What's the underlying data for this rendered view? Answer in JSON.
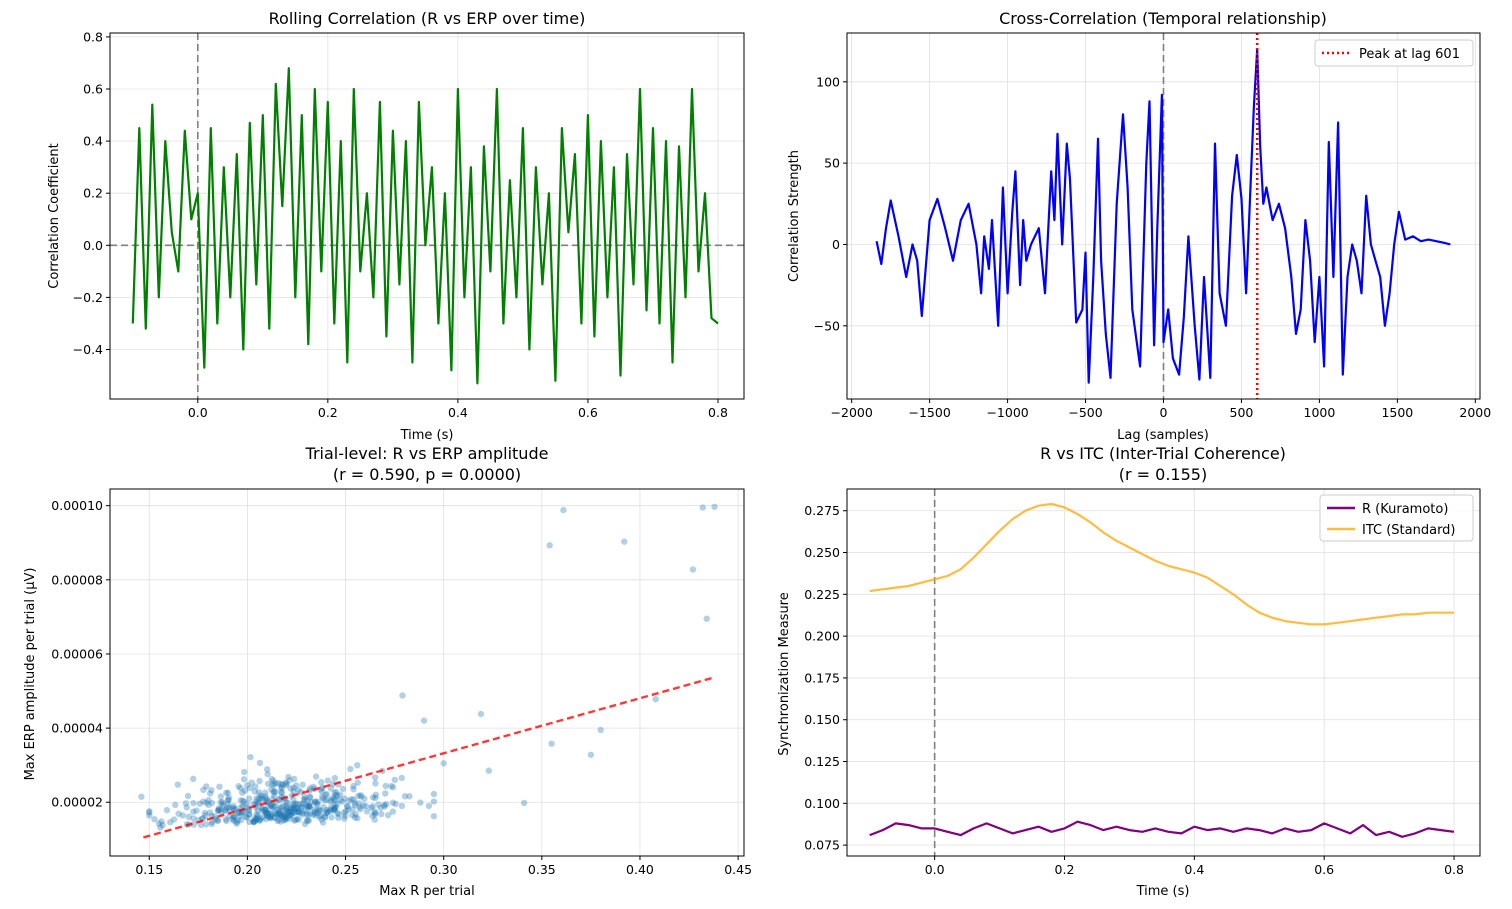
{
  "figure": {
    "background": "#ffffff"
  },
  "chart_data": [
    {
      "id": "rolling",
      "type": "line",
      "title": "Rolling Correlation (R vs ERP over time)",
      "xlabel": "Time (s)",
      "ylabel": "Correlation Coefficient",
      "xlim": [
        -0.135,
        0.84
      ],
      "ylim": [
        -0.59,
        0.815
      ],
      "xticks": [
        0.0,
        0.2,
        0.4,
        0.6,
        0.8
      ],
      "xtick_labels": [
        "0.0",
        "0.2",
        "0.4",
        "0.6",
        "0.8"
      ],
      "yticks": [
        -0.4,
        -0.2,
        0.0,
        0.2,
        0.4,
        0.6,
        0.8
      ],
      "ytick_labels": [
        "−0.4",
        "−0.2",
        "0.0",
        "0.2",
        "0.4",
        "0.6",
        "0.8"
      ],
      "grid": true,
      "vlines": [
        {
          "x": 0,
          "color": "#808080",
          "dash": "dashed"
        }
      ],
      "hlines": [
        {
          "y": 0,
          "color": "#808080",
          "dash": "dashed"
        }
      ],
      "series": [
        {
          "name": "Rolling correlation",
          "color": "#008000",
          "x": [
            -0.1,
            -0.09,
            -0.08,
            -0.07,
            -0.06,
            -0.05,
            -0.04,
            -0.03,
            -0.02,
            -0.01,
            0.0,
            0.01,
            0.02,
            0.03,
            0.04,
            0.05,
            0.06,
            0.07,
            0.08,
            0.09,
            0.1,
            0.11,
            0.12,
            0.13,
            0.14,
            0.15,
            0.16,
            0.17,
            0.18,
            0.19,
            0.2,
            0.21,
            0.22,
            0.23,
            0.24,
            0.25,
            0.26,
            0.27,
            0.28,
            0.29,
            0.3,
            0.31,
            0.32,
            0.33,
            0.34,
            0.35,
            0.36,
            0.37,
            0.38,
            0.39,
            0.4,
            0.41,
            0.42,
            0.43,
            0.44,
            0.45,
            0.46,
            0.47,
            0.48,
            0.49,
            0.5,
            0.51,
            0.52,
            0.53,
            0.54,
            0.55,
            0.56,
            0.57,
            0.58,
            0.59,
            0.6,
            0.61,
            0.62,
            0.63,
            0.64,
            0.65,
            0.66,
            0.67,
            0.68,
            0.69,
            0.7,
            0.71,
            0.72,
            0.73,
            0.74,
            0.75,
            0.76,
            0.77,
            0.78,
            0.79,
            0.8
          ],
          "y": [
            -0.3,
            0.45,
            -0.32,
            0.54,
            -0.2,
            0.4,
            0.05,
            -0.1,
            0.44,
            0.1,
            0.2,
            -0.47,
            0.45,
            -0.3,
            0.3,
            -0.2,
            0.35,
            -0.4,
            0.47,
            -0.15,
            0.5,
            -0.32,
            0.62,
            0.15,
            0.68,
            -0.2,
            0.5,
            -0.38,
            0.6,
            -0.1,
            0.55,
            -0.3,
            0.4,
            -0.45,
            0.6,
            -0.1,
            0.2,
            -0.2,
            0.55,
            -0.35,
            0.44,
            -0.15,
            0.4,
            -0.45,
            0.55,
            0.0,
            0.3,
            -0.3,
            0.2,
            -0.48,
            0.6,
            -0.2,
            0.3,
            -0.53,
            0.38,
            -0.1,
            0.6,
            -0.3,
            0.25,
            -0.2,
            0.45,
            -0.4,
            0.3,
            -0.15,
            0.2,
            -0.52,
            0.45,
            0.05,
            0.35,
            -0.3,
            0.5,
            -0.35,
            0.4,
            -0.2,
            0.3,
            -0.5,
            0.35,
            -0.15,
            0.6,
            -0.25,
            0.45,
            -0.3,
            0.4,
            -0.45,
            0.38,
            -0.2,
            0.6,
            -0.1,
            0.2,
            -0.28,
            -0.3
          ]
        }
      ]
    },
    {
      "id": "crosscorr",
      "type": "line",
      "title": "Cross-Correlation (Temporal relationship)",
      "xlabel": "Lag (samples)",
      "ylabel": "Correlation Strength",
      "xlim": [
        -2030,
        2030
      ],
      "ylim": [
        -95,
        130
      ],
      "xticks": [
        -2000,
        -1500,
        -1000,
        -500,
        0,
        500,
        1000,
        1500,
        2000
      ],
      "xtick_labels": [
        "−2000",
        "−1500",
        "−1000",
        "−500",
        "0",
        "500",
        "1000",
        "1500",
        "2000"
      ],
      "yticks": [
        -50,
        0,
        50,
        100
      ],
      "ytick_labels": [
        "−50",
        "0",
        "50",
        "100"
      ],
      "grid": true,
      "vlines": [
        {
          "x": 0,
          "color": "#808080",
          "dash": "dashed"
        },
        {
          "x": 601,
          "color": "#ff0000",
          "dash": "dotted",
          "legend": "Peak at lag 601"
        }
      ],
      "legend": {
        "position": "top-right",
        "entries": [
          {
            "label": "Peak at lag 601",
            "color": "#ff0000",
            "style": "dotted"
          }
        ]
      },
      "series": [
        {
          "name": "Cross-correlation",
          "color": "#0000ff",
          "x": [
            -1840,
            -1810,
            -1780,
            -1750,
            -1700,
            -1650,
            -1610,
            -1580,
            -1550,
            -1500,
            -1450,
            -1400,
            -1350,
            -1300,
            -1250,
            -1200,
            -1170,
            -1150,
            -1120,
            -1100,
            -1060,
            -1030,
            -1000,
            -970,
            -950,
            -920,
            -900,
            -880,
            -850,
            -800,
            -760,
            -720,
            -700,
            -680,
            -650,
            -620,
            -600,
            -560,
            -520,
            -500,
            -480,
            -450,
            -420,
            -400,
            -370,
            -340,
            -300,
            -260,
            -230,
            -200,
            -150,
            -110,
            -90,
            -60,
            -40,
            -10,
            0,
            30,
            60,
            100,
            130,
            160,
            200,
            230,
            260,
            300,
            330,
            360,
            400,
            440,
            470,
            500,
            530,
            560,
            580,
            601,
            620,
            640,
            660,
            700,
            740,
            780,
            820,
            850,
            880,
            910,
            940,
            970,
            1000,
            1030,
            1060,
            1090,
            1120,
            1150,
            1180,
            1210,
            1240,
            1270,
            1300,
            1330,
            1360,
            1390,
            1420,
            1450,
            1480,
            1510,
            1550,
            1600,
            1650,
            1700,
            1750,
            1800,
            1840
          ],
          "y": [
            2,
            -12,
            10,
            27,
            5,
            -20,
            0,
            -10,
            -44,
            15,
            28,
            10,
            -10,
            15,
            25,
            0,
            -30,
            5,
            -15,
            15,
            -50,
            35,
            -30,
            20,
            45,
            -25,
            15,
            -10,
            0,
            10,
            -30,
            45,
            15,
            68,
            0,
            62,
            40,
            -48,
            -40,
            -5,
            -85,
            -20,
            65,
            -10,
            -55,
            -82,
            25,
            80,
            35,
            -40,
            -75,
            50,
            88,
            -62,
            10,
            92,
            -60,
            -40,
            -70,
            -80,
            -45,
            5,
            -50,
            -83,
            -20,
            -82,
            62,
            -30,
            -50,
            30,
            55,
            28,
            -30,
            40,
            85,
            120,
            60,
            25,
            35,
            15,
            25,
            10,
            -20,
            -55,
            -40,
            15,
            -10,
            -60,
            -20,
            -75,
            63,
            -20,
            75,
            -80,
            -20,
            0,
            -10,
            -30,
            30,
            0,
            -10,
            -20,
            -50,
            -30,
            0,
            20,
            3,
            5,
            2,
            3,
            2,
            1,
            0
          ]
        }
      ]
    },
    {
      "id": "scatter",
      "type": "scatter",
      "title": "Trial-level: R vs ERP amplitude",
      "title2": "(r = 0.590, p = 0.0000)",
      "xlabel": "Max R per trial",
      "ylabel": "Max ERP amplitude per trial (µV)",
      "xlim": [
        0.13,
        0.453
      ],
      "ylim": [
        5.5e-06,
        0.0001045
      ],
      "xticks": [
        0.15,
        0.2,
        0.25,
        0.3,
        0.35,
        0.4,
        0.45
      ],
      "xtick_labels": [
        "0.15",
        "0.20",
        "0.25",
        "0.30",
        "0.35",
        "0.40",
        "0.45"
      ],
      "yticks": [
        2e-05,
        4e-05,
        6e-05,
        8e-05,
        0.0001
      ],
      "ytick_labels": [
        "0.00002",
        "0.00004",
        "0.00006",
        "0.00008",
        "0.00010"
      ],
      "grid": true,
      "point_color": "#1f77b4",
      "fit_line": {
        "x": [
          0.147,
          0.438
        ],
        "y": [
          1.05e-05,
          5.37e-05
        ],
        "color": "#ff0000",
        "dash": "dashed"
      },
      "outliers": [
        {
          "x": 0.146,
          "y": 2.15e-05
        },
        {
          "x": 0.279,
          "y": 4.88e-05
        },
        {
          "x": 0.29,
          "y": 4.2e-05
        },
        {
          "x": 0.3,
          "y": 3.05e-05
        },
        {
          "x": 0.319,
          "y": 4.38e-05
        },
        {
          "x": 0.323,
          "y": 2.85e-05
        },
        {
          "x": 0.341,
          "y": 1.98e-05
        },
        {
          "x": 0.354,
          "y": 8.93e-05
        },
        {
          "x": 0.355,
          "y": 3.58e-05
        },
        {
          "x": 0.361,
          "y": 9.88e-05
        },
        {
          "x": 0.375,
          "y": 3.28e-05
        },
        {
          "x": 0.38,
          "y": 3.95e-05
        },
        {
          "x": 0.392,
          "y": 9.03e-05
        },
        {
          "x": 0.408,
          "y": 4.78e-05
        },
        {
          "x": 0.427,
          "y": 8.28e-05
        },
        {
          "x": 0.432,
          "y": 9.95e-05
        },
        {
          "x": 0.434,
          "y": 6.95e-05
        },
        {
          "x": 0.438,
          "y": 9.97e-05
        }
      ],
      "cluster": {
        "n": 470,
        "x_range": [
          0.15,
          0.295
        ],
        "y_range": [
          1.2e-05,
          4e-05
        ],
        "x_center": 0.22,
        "y_center": 2e-05
      }
    },
    {
      "id": "r_vs_itc",
      "type": "line",
      "title": "R vs ITC (Inter-Trial Coherence)",
      "title2": "(r = 0.155)",
      "xlabel": "Time (s)",
      "ylabel": "Synchronization Measure",
      "xlim": [
        -0.135,
        0.84
      ],
      "ylim": [
        0.0685,
        0.288
      ],
      "xticks": [
        0.0,
        0.2,
        0.4,
        0.6,
        0.8
      ],
      "xtick_labels": [
        "0.0",
        "0.2",
        "0.4",
        "0.6",
        "0.8"
      ],
      "yticks": [
        0.075,
        0.1,
        0.125,
        0.15,
        0.175,
        0.2,
        0.225,
        0.25,
        0.275
      ],
      "ytick_labels": [
        "0.075",
        "0.100",
        "0.125",
        "0.150",
        "0.175",
        "0.200",
        "0.225",
        "0.250",
        "0.275"
      ],
      "grid": true,
      "vlines": [
        {
          "x": 0,
          "color": "#808080",
          "dash": "dashed"
        }
      ],
      "legend": {
        "position": "top-right",
        "entries": [
          {
            "label": "R (Kuramoto)",
            "color": "#800080",
            "style": "solid"
          },
          {
            "label": "ITC (Standard)",
            "color": "#ffa500",
            "style": "solid"
          }
        ]
      },
      "series": [
        {
          "name": "R (Kuramoto)",
          "color": "#800080",
          "x": [
            -0.1,
            -0.08,
            -0.06,
            -0.04,
            -0.02,
            0.0,
            0.02,
            0.04,
            0.06,
            0.08,
            0.1,
            0.12,
            0.14,
            0.16,
            0.18,
            0.2,
            0.22,
            0.24,
            0.26,
            0.28,
            0.3,
            0.32,
            0.34,
            0.36,
            0.38,
            0.4,
            0.42,
            0.44,
            0.46,
            0.48,
            0.5,
            0.52,
            0.54,
            0.56,
            0.58,
            0.6,
            0.62,
            0.64,
            0.66,
            0.68,
            0.7,
            0.72,
            0.74,
            0.76,
            0.78,
            0.8
          ],
          "y": [
            0.081,
            0.084,
            0.088,
            0.087,
            0.085,
            0.085,
            0.083,
            0.081,
            0.085,
            0.088,
            0.085,
            0.082,
            0.084,
            0.086,
            0.083,
            0.085,
            0.089,
            0.087,
            0.084,
            0.086,
            0.084,
            0.083,
            0.085,
            0.083,
            0.082,
            0.086,
            0.084,
            0.085,
            0.083,
            0.085,
            0.084,
            0.082,
            0.085,
            0.083,
            0.084,
            0.088,
            0.085,
            0.082,
            0.087,
            0.081,
            0.083,
            0.08,
            0.082,
            0.085,
            0.084,
            0.083
          ]
        },
        {
          "name": "ITC (Standard)",
          "color": "#ffa500",
          "x": [
            -0.1,
            -0.08,
            -0.06,
            -0.04,
            -0.02,
            0.0,
            0.02,
            0.04,
            0.06,
            0.08,
            0.1,
            0.12,
            0.14,
            0.16,
            0.18,
            0.2,
            0.22,
            0.24,
            0.26,
            0.28,
            0.3,
            0.32,
            0.34,
            0.36,
            0.38,
            0.4,
            0.42,
            0.44,
            0.46,
            0.48,
            0.5,
            0.52,
            0.54,
            0.56,
            0.58,
            0.6,
            0.62,
            0.64,
            0.66,
            0.68,
            0.7,
            0.72,
            0.74,
            0.76,
            0.78,
            0.8
          ],
          "y": [
            0.227,
            0.228,
            0.229,
            0.23,
            0.232,
            0.234,
            0.236,
            0.24,
            0.247,
            0.255,
            0.263,
            0.27,
            0.275,
            0.278,
            0.279,
            0.277,
            0.273,
            0.268,
            0.262,
            0.257,
            0.253,
            0.249,
            0.245,
            0.242,
            0.24,
            0.238,
            0.235,
            0.23,
            0.225,
            0.219,
            0.214,
            0.211,
            0.209,
            0.208,
            0.207,
            0.207,
            0.208,
            0.209,
            0.21,
            0.211,
            0.212,
            0.213,
            0.213,
            0.214,
            0.214,
            0.214
          ]
        }
      ]
    }
  ]
}
